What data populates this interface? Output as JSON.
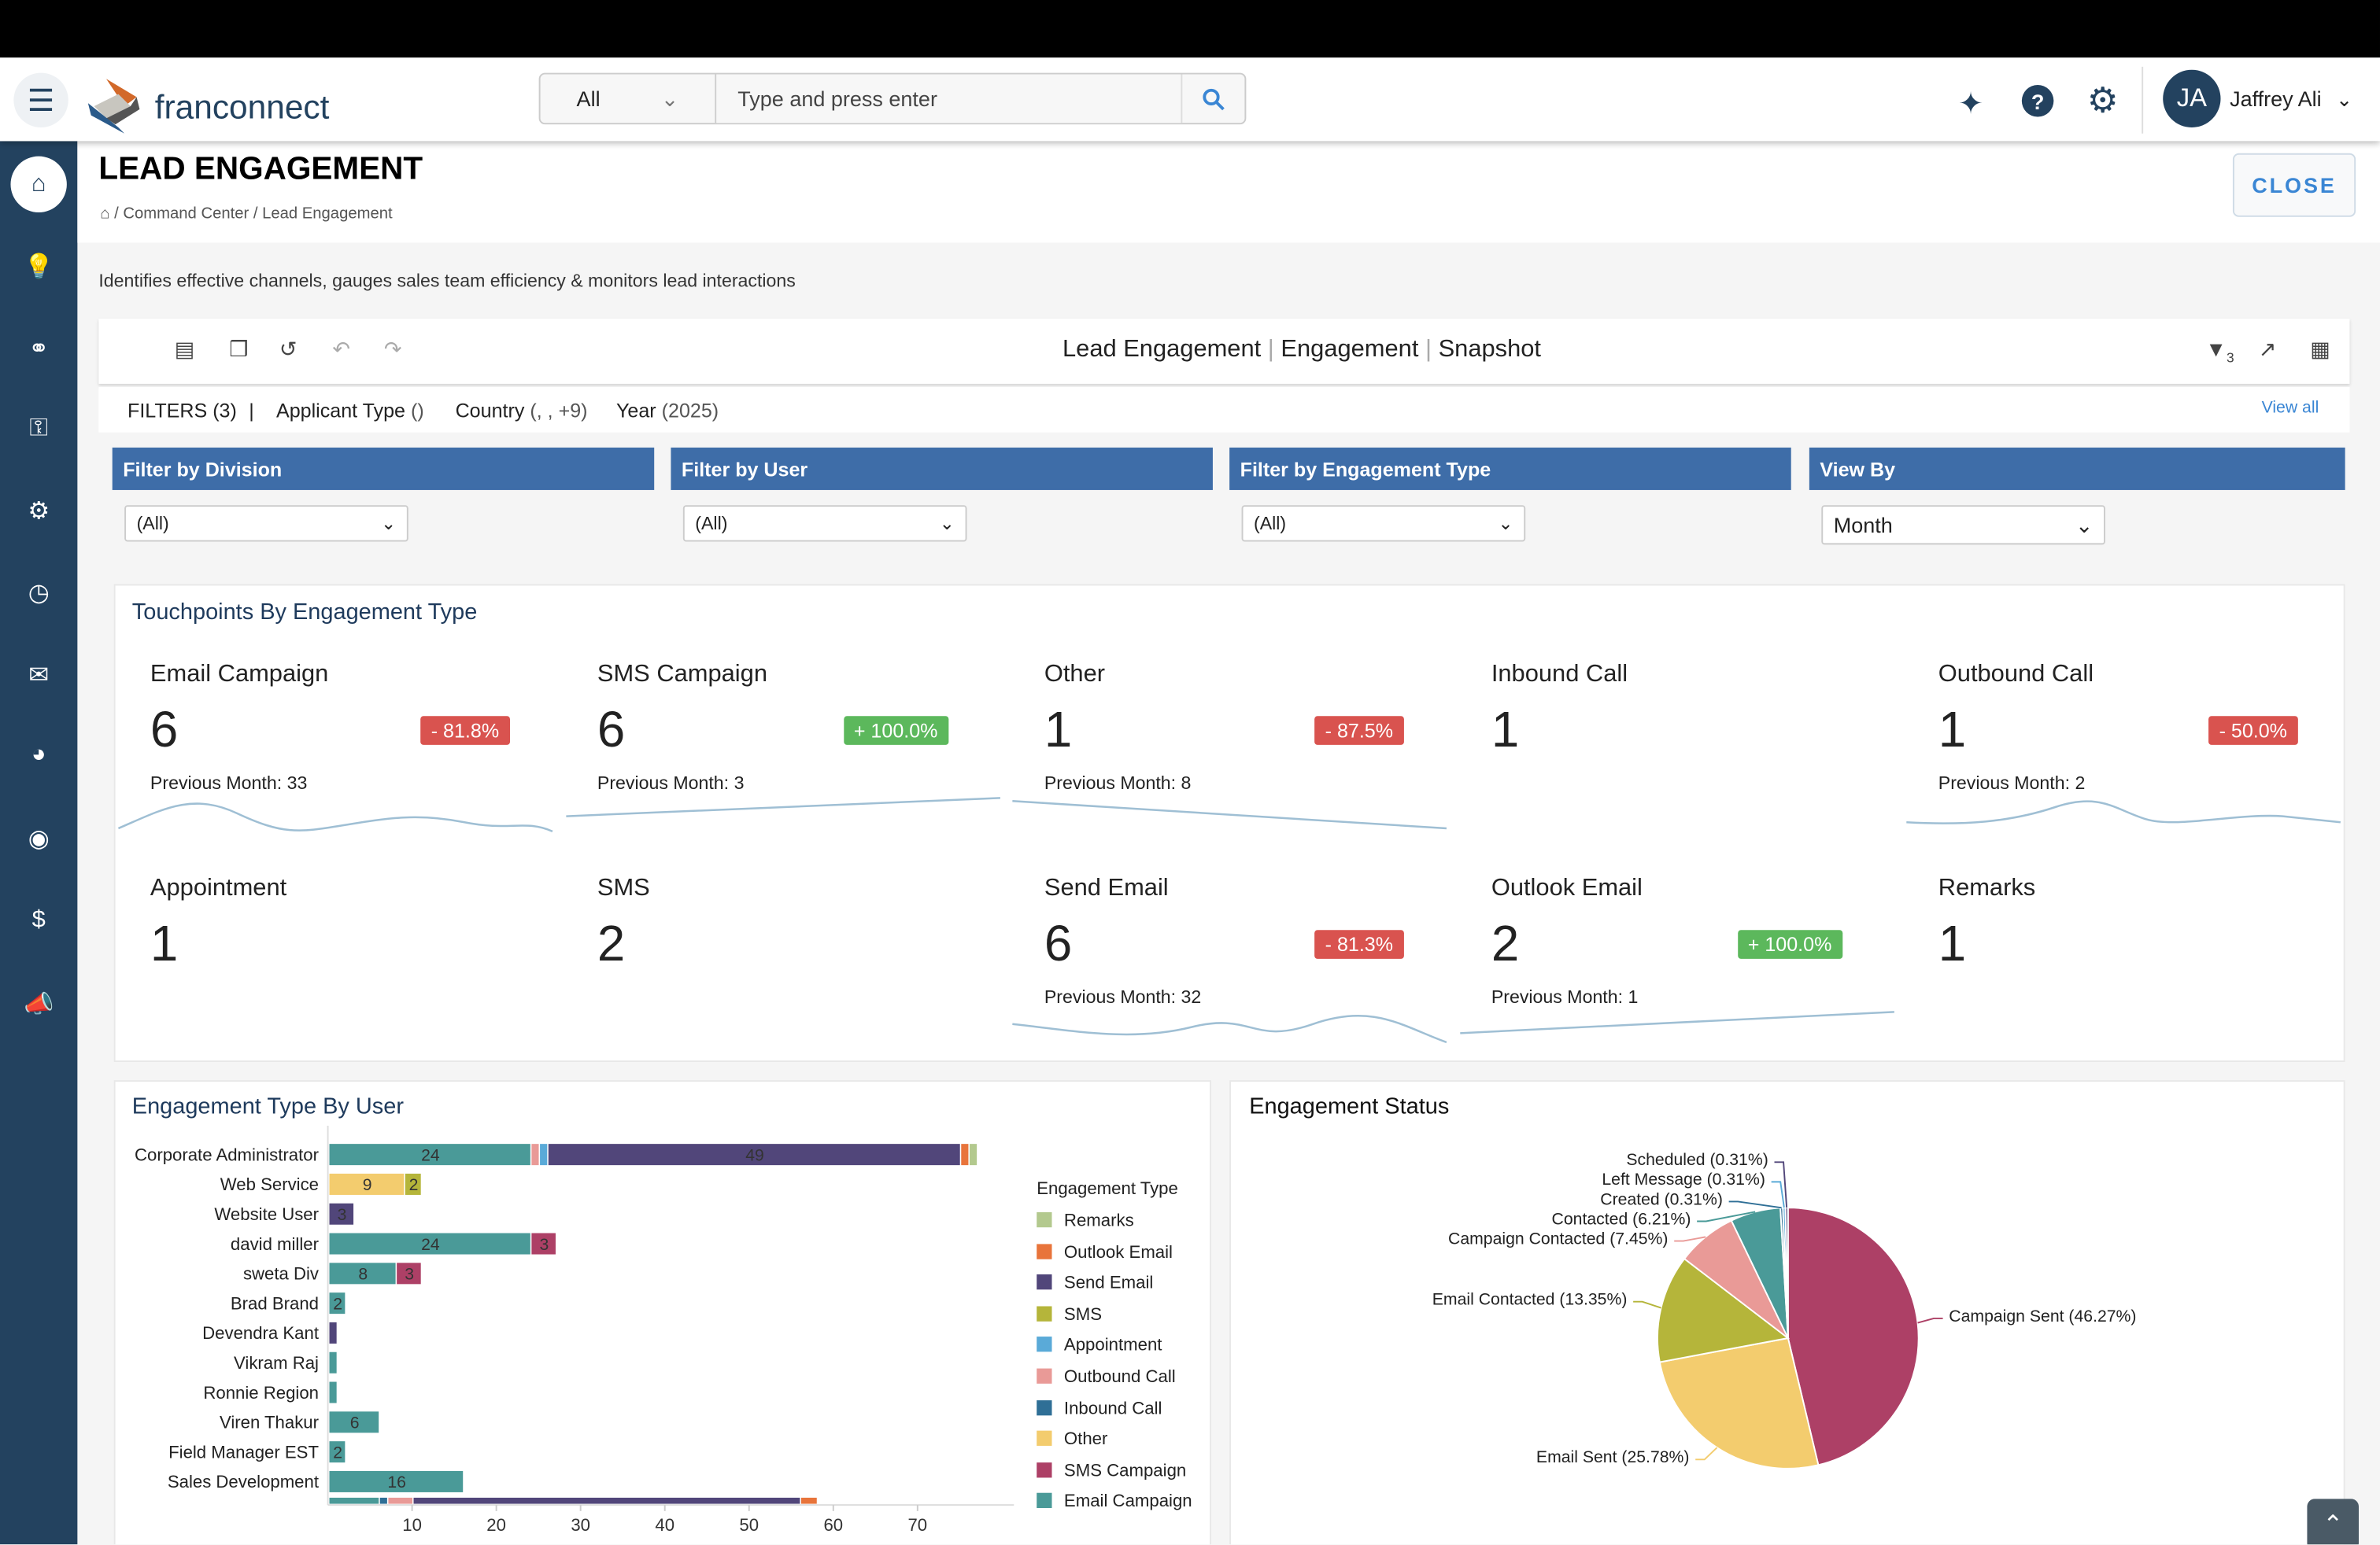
{
  "header": {
    "logo": "franconnect",
    "search_scope": "All",
    "search_placeholder": "Type and press enter",
    "user_initials": "JA",
    "user_name": "Jaffrey Ali"
  },
  "sidebar": {
    "items": [
      "home",
      "insights",
      "deals",
      "keys",
      "settings",
      "dashboard",
      "messages",
      "reports",
      "support",
      "finance",
      "campaigns"
    ]
  },
  "page": {
    "title": "LEAD ENGAGEMENT",
    "breadcrumb": "/ Command Center / Lead Engagement",
    "close": "CLOSE",
    "description": "Identifies effective channels, gauges sales team efficiency & monitors lead interactions"
  },
  "toolbar": {
    "title_parts": [
      "Lead Engagement",
      "Engagement",
      "Snapshot"
    ],
    "filter_count": "3"
  },
  "filters": {
    "label": "FILTERS (3)",
    "sep": "|",
    "items": [
      {
        "name": "Applicant Type",
        "value": "()"
      },
      {
        "name": "Country",
        "value": "(, , +9)"
      },
      {
        "name": "Year",
        "value": "(2025)"
      }
    ],
    "view_all": "View all"
  },
  "filter_panels": [
    {
      "title": "Filter by Division",
      "value": "(All)"
    },
    {
      "title": "Filter by User",
      "value": "(All)"
    },
    {
      "title": "Filter by Engagement Type",
      "value": "(All)"
    },
    {
      "title": "View By",
      "value": "Month"
    }
  ],
  "touchpoints": {
    "title": "Touchpoints By Engagement Type",
    "prev_label": "Previous Month:",
    "items": [
      {
        "name": "Email Campaign",
        "value": "6",
        "change": "- 81.8%",
        "trend": "negative",
        "previous": "33"
      },
      {
        "name": "SMS Campaign",
        "value": "6",
        "change": "+ 100.0%",
        "trend": "positive",
        "previous": "3"
      },
      {
        "name": "Other",
        "value": "1",
        "change": "- 87.5%",
        "trend": "negative",
        "previous": "8"
      },
      {
        "name": "Inbound Call",
        "value": "1",
        "change": null,
        "trend": null,
        "previous": null
      },
      {
        "name": "Outbound Call",
        "value": "1",
        "change": "- 50.0%",
        "trend": "negative",
        "previous": "2"
      },
      {
        "name": "Appointment",
        "value": "1",
        "change": null,
        "trend": null,
        "previous": null
      },
      {
        "name": "SMS",
        "value": "2",
        "change": null,
        "trend": null,
        "previous": null
      },
      {
        "name": "Send Email",
        "value": "6",
        "change": "- 81.3%",
        "trend": "negative",
        "previous": "32"
      },
      {
        "name": "Outlook Email",
        "value": "2",
        "change": "+ 100.0%",
        "trend": "positive",
        "previous": "1"
      },
      {
        "name": "Remarks",
        "value": "1",
        "change": null,
        "trend": null,
        "previous": null
      }
    ]
  },
  "chart_data": [
    {
      "type": "bar",
      "orientation": "horizontal",
      "stacked": true,
      "title": "Engagement Type By User",
      "legend_title": "Engagement Type",
      "legend_position": "right",
      "xlim": [
        0,
        78
      ],
      "xticks": [
        10,
        20,
        30,
        40,
        50,
        60,
        70
      ],
      "series_colors": {
        "Remarks": "#B3C98E",
        "Outlook Email": "#E8743B",
        "Send Email": "#51467A",
        "SMS": "#B5B53A",
        "Appointment": "#5AAAD8",
        "Outbound Call": "#E99A97",
        "Inbound Call": "#2F6F96",
        "Other": "#F3CC6E",
        "SMS Campaign": "#AD4066",
        "Email Campaign": "#4A9A98"
      },
      "legend": [
        "Remarks",
        "Outlook Email",
        "Send Email",
        "SMS",
        "Appointment",
        "Outbound Call",
        "Inbound Call",
        "Other",
        "SMS Campaign",
        "Email Campaign"
      ],
      "categories": [
        "Corporate Administrator",
        "Web Service",
        "Website User",
        "david miller",
        "sweta Div",
        "Brad Brand",
        "Devendra Kant",
        "Vikram Raj",
        "Ronnie Region",
        "Viren Thakur",
        "Field Manager EST",
        "Sales Development",
        ""
      ],
      "rows": [
        [
          [
            "Email Campaign",
            24
          ],
          [
            "Outbound Call",
            1
          ],
          [
            "Appointment",
            1
          ],
          [
            "Send Email",
            49
          ],
          [
            "Outlook Email",
            1
          ],
          [
            "Remarks",
            1
          ]
        ],
        [
          [
            "Other",
            9
          ],
          [
            "SMS",
            2
          ]
        ],
        [
          [
            "Send Email",
            3
          ]
        ],
        [
          [
            "Email Campaign",
            24
          ],
          [
            "SMS Campaign",
            3
          ]
        ],
        [
          [
            "Email Campaign",
            8
          ],
          [
            "SMS Campaign",
            3
          ]
        ],
        [
          [
            "Email Campaign",
            2
          ]
        ],
        [
          [
            "Send Email",
            1
          ]
        ],
        [
          [
            "Email Campaign",
            1
          ]
        ],
        [
          [
            "Email Campaign",
            1
          ]
        ],
        [
          [
            "Email Campaign",
            6
          ]
        ],
        [
          [
            "Email Campaign",
            2
          ]
        ],
        [
          [
            "Email Campaign",
            16
          ]
        ],
        [
          [
            "Email Campaign",
            6
          ],
          [
            "Inbound Call",
            1
          ],
          [
            "Outbound Call",
            3
          ],
          [
            "Send Email",
            46
          ],
          [
            "Outlook Email",
            2
          ]
        ]
      ]
    },
    {
      "type": "pie",
      "title": "Engagement Status",
      "slices": [
        {
          "label": "Campaign Sent (46.27%)",
          "value": 46.27,
          "color": "#AD4066"
        },
        {
          "label": "Email Sent (25.78%)",
          "value": 25.78,
          "color": "#F3CC6E"
        },
        {
          "label": "Email Contacted (13.35%)",
          "value": 13.35,
          "color": "#B5B53A"
        },
        {
          "label": "Campaign Contacted (7.45%)",
          "value": 7.45,
          "color": "#E99A97"
        },
        {
          "label": "Contacted (6.21%)",
          "value": 6.21,
          "color": "#4A9A98"
        },
        {
          "label": "Created (0.31%)",
          "value": 0.31,
          "color": "#2F6F96"
        },
        {
          "label": "Left Message (0.31%)",
          "value": 0.31,
          "color": "#5AAAD8"
        },
        {
          "label": "Scheduled (0.31%)",
          "value": 0.31,
          "color": "#52477A"
        }
      ]
    }
  ]
}
